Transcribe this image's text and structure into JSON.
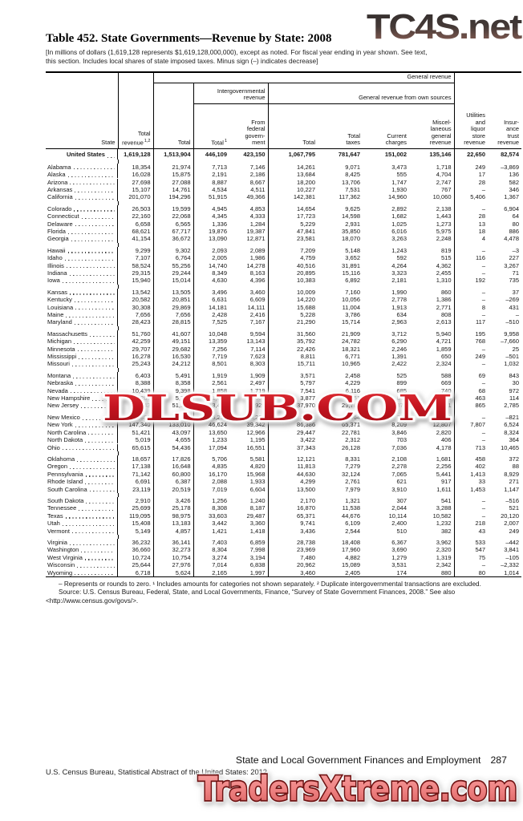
{
  "watermarks": {
    "top_right": "TC4S.net",
    "center": "DLSUB.COM",
    "bottom": "TradersXtreme.com"
  },
  "title": "Table 452. State Governments—Revenue by State: 2008",
  "subtitle": "[In millions of dollars (1,619,128 represents $1,619,128,000,000), except as noted. For fiscal year ending in year shown. See text,\nthis section. Includes local shares of state imposed taxes. Minus sign (–) indicates decrease]",
  "header": {
    "state": "State",
    "total_revenue": "Total\nrevenue",
    "total_revenue_note": "1,2",
    "general_revenue": "General revenue",
    "gen_total": "Total",
    "intergovernmental": "Intergovernmental\nrevenue",
    "ig_total": "Total",
    "ig_total_note": "1",
    "from_federal": "From\nfederal\ngovern-\nment",
    "own_sources": "General revenue from own sources",
    "own_total": "Total",
    "total_taxes": "Total\ntaxes",
    "current_charges": "Current\ncharges",
    "misc": "Miscel-\nlaneous\ngeneral\nrevenue",
    "utilities": "Utilities\nand\nliquor\nstore\nrevenue",
    "insurance": "Insur-\nance\ntrust\nrevenue"
  },
  "table": {
    "us_row": {
      "label": "United States",
      "values": [
        "1,619,128",
        "1,513,904",
        "446,109",
        "423,150",
        "1,067,795",
        "781,647",
        "151,002",
        "135,146",
        "22,650",
        "82,574"
      ]
    },
    "groups": [
      [
        {
          "label": "Alabama",
          "values": [
            "18,354",
            "21,974",
            "7,713",
            "7,146",
            "14,261",
            "9,071",
            "3,473",
            "1,718",
            "249",
            "–3,869"
          ]
        },
        {
          "label": "Alaska",
          "values": [
            "16,028",
            "15,875",
            "2,191",
            "2,186",
            "13,684",
            "8,425",
            "555",
            "4,704",
            "17",
            "136"
          ]
        },
        {
          "label": "Arizona",
          "values": [
            "27,698",
            "27,088",
            "8,887",
            "8,667",
            "18,200",
            "13,706",
            "1,747",
            "2,747",
            "28",
            "582"
          ]
        },
        {
          "label": "Arkansas",
          "values": [
            "15,107",
            "14,761",
            "4,534",
            "4,511",
            "10,227",
            "7,531",
            "1,930",
            "767",
            "–",
            "346"
          ]
        },
        {
          "label": "California",
          "values": [
            "201,070",
            "194,296",
            "51,915",
            "49,366",
            "142,381",
            "117,362",
            "14,960",
            "10,060",
            "5,406",
            "1,367"
          ]
        }
      ],
      [
        {
          "label": "Colorado",
          "values": [
            "26,503",
            "19,599",
            "4,945",
            "4,853",
            "14,654",
            "9,625",
            "2,892",
            "2,138",
            "–",
            "6,904"
          ]
        },
        {
          "label": "Connecticut",
          "values": [
            "22,160",
            "22,068",
            "4,345",
            "4,333",
            "17,723",
            "14,598",
            "1,682",
            "1,443",
            "28",
            "64"
          ]
        },
        {
          "label": "Delaware",
          "values": [
            "6,658",
            "6,565",
            "1,336",
            "1,284",
            "5,229",
            "2,931",
            "1,025",
            "1,273",
            "13",
            "80"
          ]
        },
        {
          "label": "Florida",
          "values": [
            "68,621",
            "67,717",
            "19,876",
            "19,387",
            "47,841",
            "35,850",
            "6,016",
            "5,975",
            "18",
            "886"
          ]
        },
        {
          "label": "Georgia",
          "values": [
            "41,154",
            "36,672",
            "13,090",
            "12,871",
            "23,581",
            "18,070",
            "3,263",
            "2,248",
            "4",
            "4,478"
          ]
        }
      ],
      [
        {
          "label": "Hawaii",
          "values": [
            "9,299",
            "9,302",
            "2,093",
            "2,089",
            "7,209",
            "5,148",
            "1,243",
            "819",
            "–",
            "–3"
          ]
        },
        {
          "label": "Idaho",
          "values": [
            "7,107",
            "6,764",
            "2,005",
            "1,986",
            "4,759",
            "3,652",
            "592",
            "515",
            "116",
            "227"
          ]
        },
        {
          "label": "Illinois",
          "values": [
            "58,524",
            "55,256",
            "14,740",
            "14,278",
            "40,516",
            "31,891",
            "4,264",
            "4,362",
            "–",
            "3,267"
          ]
        },
        {
          "label": "Indiana",
          "values": [
            "29,315",
            "29,244",
            "8,349",
            "8,163",
            "20,895",
            "15,116",
            "3,323",
            "2,455",
            "–",
            "71"
          ]
        },
        {
          "label": "Iowa",
          "values": [
            "15,940",
            "15,014",
            "4,630",
            "4,396",
            "10,383",
            "6,892",
            "2,181",
            "1,310",
            "192",
            "735"
          ]
        }
      ],
      [
        {
          "label": "Kansas",
          "values": [
            "13,542",
            "13,505",
            "3,496",
            "3,460",
            "10,009",
            "7,160",
            "1,990",
            "860",
            "–",
            "37"
          ]
        },
        {
          "label": "Kentucky",
          "values": [
            "20,582",
            "20,851",
            "6,631",
            "6,609",
            "14,220",
            "10,056",
            "2,778",
            "1,386",
            "–",
            "–269"
          ]
        },
        {
          "label": "Louisiana",
          "values": [
            "30,308",
            "29,869",
            "14,181",
            "14,111",
            "15,688",
            "11,004",
            "1,913",
            "2,771",
            "8",
            "431"
          ]
        },
        {
          "label": "Maine",
          "values": [
            "7,656",
            "7,656",
            "2,428",
            "2,416",
            "5,228",
            "3,786",
            "634",
            "808",
            "–",
            "–"
          ]
        },
        {
          "label": "Maryland",
          "values": [
            "28,423",
            "28,815",
            "7,525",
            "7,167",
            "21,290",
            "15,714",
            "2,963",
            "2,613",
            "117",
            "–510"
          ]
        }
      ],
      [
        {
          "label": "Massachusetts",
          "values": [
            "51,760",
            "41,607",
            "10,048",
            "9,594",
            "31,560",
            "21,909",
            "3,712",
            "5,940",
            "195",
            "9,958"
          ]
        },
        {
          "label": "Michigan",
          "values": [
            "42,259",
            "49,151",
            "13,359",
            "13,143",
            "35,792",
            "24,782",
            "6,290",
            "4,721",
            "768",
            "–7,660"
          ]
        },
        {
          "label": "Minnesota",
          "values": [
            "29,707",
            "29,682",
            "7,256",
            "7,114",
            "22,426",
            "18,321",
            "2,246",
            "1,859",
            "–",
            "25"
          ]
        },
        {
          "label": "Mississippi",
          "values": [
            "16,278",
            "16,530",
            "7,719",
            "7,623",
            "8,811",
            "6,771",
            "1,391",
            "650",
            "249",
            "–501"
          ]
        },
        {
          "label": "Missouri",
          "values": [
            "25,243",
            "24,212",
            "8,501",
            "8,303",
            "15,711",
            "10,965",
            "2,422",
            "2,324",
            "–",
            "1,032"
          ]
        }
      ],
      [
        {
          "label": "Montana",
          "values": [
            "6,403",
            "5,491",
            "1,919",
            "1,909",
            "3,571",
            "2,458",
            "525",
            "588",
            "69",
            "843"
          ]
        },
        {
          "label": "Nebraska",
          "values": [
            "8,388",
            "8,358",
            "2,561",
            "2,497",
            "5,797",
            "4,229",
            "899",
            "669",
            "–",
            "30"
          ]
        },
        {
          "label": "Nevada",
          "values": [
            "10,439",
            "9,398",
            "1,858",
            "1,719",
            "7,541",
            "6,116",
            "685",
            "740",
            "68",
            "972"
          ]
        },
        {
          "label": "New Hampshire",
          "values": [
            "6,285",
            "5,707",
            "1,830",
            "1,603",
            "3,877",
            "2,251",
            "811",
            "815",
            "463",
            "114"
          ]
        },
        {
          "label": "New Jersey",
          "values": [
            "55,043",
            "51,393",
            "13,423",
            "12,929",
            "37,970",
            "29,768",
            "3,871",
            "4,331",
            "865",
            "2,785"
          ]
        }
      ],
      [
        {
          "label": "New Mexico",
          "values": [
            "12,851",
            "13,672",
            "5,293",
            "5,261",
            "8,379",
            "5,064",
            "744",
            "2,571",
            "–",
            "–821"
          ]
        },
        {
          "label": "New York",
          "values": [
            "147,340",
            "133,010",
            "46,624",
            "39,342",
            "86,386",
            "65,371",
            "8,209",
            "12,807",
            "7,807",
            "6,524"
          ]
        },
        {
          "label": "North Carolina",
          "values": [
            "51,421",
            "43,097",
            "13,650",
            "12,966",
            "29,447",
            "22,781",
            "3,846",
            "2,820",
            "–",
            "8,324"
          ]
        },
        {
          "label": "North Dakota",
          "values": [
            "5,019",
            "4,655",
            "1,233",
            "1,195",
            "3,422",
            "2,312",
            "703",
            "406",
            "–",
            "364"
          ]
        },
        {
          "label": "Ohio",
          "values": [
            "65,615",
            "54,436",
            "17,094",
            "16,551",
            "37,343",
            "26,128",
            "7,036",
            "4,178",
            "713",
            "10,465"
          ]
        }
      ],
      [
        {
          "label": "Oklahoma",
          "values": [
            "18,657",
            "17,826",
            "5,706",
            "5,581",
            "12,121",
            "8,331",
            "2,108",
            "1,681",
            "458",
            "372"
          ]
        },
        {
          "label": "Oregon",
          "values": [
            "17,138",
            "16,648",
            "4,835",
            "4,820",
            "11,813",
            "7,279",
            "2,278",
            "2,256",
            "402",
            "88"
          ]
        },
        {
          "label": "Pennsylvania",
          "values": [
            "71,142",
            "60,800",
            "16,170",
            "15,968",
            "44,630",
            "32,124",
            "7,065",
            "5,441",
            "1,413",
            "8,929"
          ]
        },
        {
          "label": "Rhode Island",
          "values": [
            "6,691",
            "6,387",
            "2,088",
            "1,933",
            "4,299",
            "2,761",
            "621",
            "917",
            "33",
            "271"
          ]
        },
        {
          "label": "South Carolina",
          "values": [
            "23,119",
            "20,519",
            "7,019",
            "6,604",
            "13,500",
            "7,979",
            "3,910",
            "1,611",
            "1,453",
            "1,147"
          ]
        }
      ],
      [
        {
          "label": "South Dakota",
          "values": [
            "2,910",
            "3,426",
            "1,256",
            "1,240",
            "2,170",
            "1,321",
            "307",
            "541",
            "–",
            "–516"
          ]
        },
        {
          "label": "Tennessee",
          "values": [
            "25,699",
            "25,178",
            "8,308",
            "8,187",
            "16,870",
            "11,538",
            "2,044",
            "3,288",
            "–",
            "521"
          ]
        },
        {
          "label": "Texas",
          "values": [
            "119,095",
            "98,975",
            "33,603",
            "29,487",
            "65,371",
            "44,676",
            "10,114",
            "10,582",
            "–",
            "20,120"
          ]
        },
        {
          "label": "Utah",
          "values": [
            "15,408",
            "13,183",
            "3,442",
            "3,360",
            "9,741",
            "6,109",
            "2,400",
            "1,232",
            "218",
            "2,007"
          ]
        },
        {
          "label": "Vermont",
          "values": [
            "5,149",
            "4,857",
            "1,421",
            "1,418",
            "3,436",
            "2,544",
            "510",
            "382",
            "43",
            "249"
          ]
        }
      ],
      [
        {
          "label": "Virginia",
          "values": [
            "36,232",
            "36,141",
            "7,403",
            "6,859",
            "28,738",
            "18,408",
            "6,367",
            "3,962",
            "533",
            "–442"
          ]
        },
        {
          "label": "Washington",
          "values": [
            "36,660",
            "32,273",
            "8,304",
            "7,998",
            "23,969",
            "17,960",
            "3,690",
            "2,320",
            "547",
            "3,841"
          ]
        },
        {
          "label": "West Virginia",
          "values": [
            "10,724",
            "10,754",
            "3,274",
            "3,194",
            "7,480",
            "4,882",
            "1,279",
            "1,319",
            "75",
            "–105"
          ]
        },
        {
          "label": "Wisconsin",
          "values": [
            "25,644",
            "27,976",
            "7,014",
            "6,838",
            "20,962",
            "15,089",
            "3,531",
            "2,342",
            "–",
            "–2,332"
          ]
        },
        {
          "label": "Wyoming",
          "values": [
            "6,718",
            "5,624",
            "2,165",
            "1,997",
            "3,460",
            "2,405",
            "174",
            "880",
            "80",
            "1,014"
          ]
        }
      ]
    ]
  },
  "footnotes": {
    "symbols": "– Represents or rounds to zero. ¹ Includes amounts for categories not shown separately. ² Duplicate intergovernmental transactions are excluded.",
    "source": "Source: U.S. Census Bureau, Federal, State, and Local Governments, Finance, “Survey of State Government Finances, 2008.” See also <http://www.census.gov/govs/>."
  },
  "footer": {
    "section_title": "State and Local Government Finances and Employment",
    "page_number": "287",
    "credit": "U.S. Census Bureau, Statistical Abstract of the United States: 2012"
  },
  "colors": {
    "watermark_red": "#c41420",
    "watermark_salmon": "#ef8484",
    "watermark_gray_top": "#2e2b2b",
    "watermark_maroon_bottom": "#96655a"
  }
}
